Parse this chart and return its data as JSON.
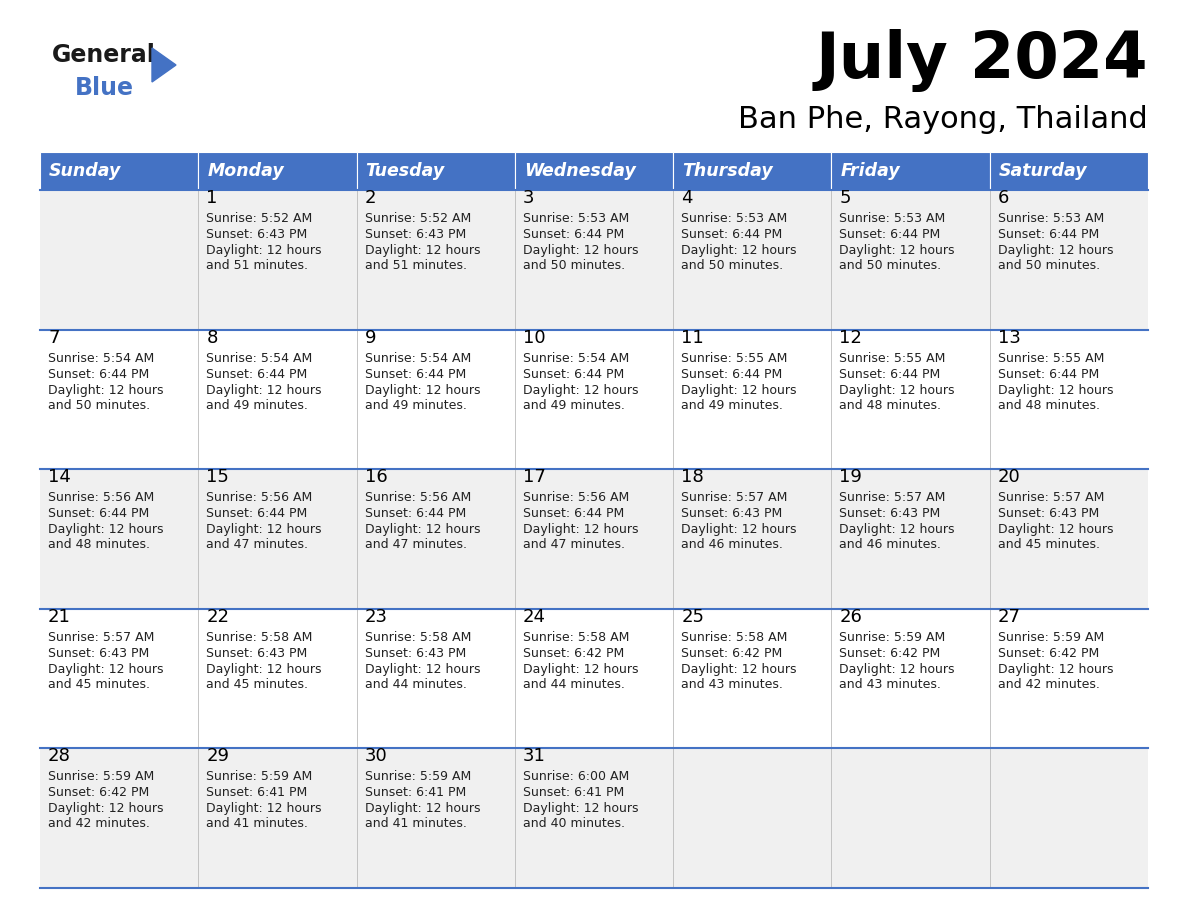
{
  "title": "July 2024",
  "subtitle": "Ban Phe, Rayong, Thailand",
  "days_of_week": [
    "Sunday",
    "Monday",
    "Tuesday",
    "Wednesday",
    "Thursday",
    "Friday",
    "Saturday"
  ],
  "header_bg": "#4472C4",
  "header_text": "#FFFFFF",
  "row_bg_odd": "#F0F0F0",
  "row_bg_even": "#FFFFFF",
  "cell_text": "#222222",
  "day_num_color": "#000000",
  "divider_color": "#4472C4",
  "title_color": "#000000",
  "subtitle_color": "#000000",
  "weeks": [
    {
      "days": [
        {
          "date": "",
          "sunrise": "",
          "sunset": "",
          "daylight": ""
        },
        {
          "date": "1",
          "sunrise": "Sunrise: 5:52 AM",
          "sunset": "Sunset: 6:43 PM",
          "daylight": "Daylight: 12 hours\nand 51 minutes."
        },
        {
          "date": "2",
          "sunrise": "Sunrise: 5:52 AM",
          "sunset": "Sunset: 6:43 PM",
          "daylight": "Daylight: 12 hours\nand 51 minutes."
        },
        {
          "date": "3",
          "sunrise": "Sunrise: 5:53 AM",
          "sunset": "Sunset: 6:44 PM",
          "daylight": "Daylight: 12 hours\nand 50 minutes."
        },
        {
          "date": "4",
          "sunrise": "Sunrise: 5:53 AM",
          "sunset": "Sunset: 6:44 PM",
          "daylight": "Daylight: 12 hours\nand 50 minutes."
        },
        {
          "date": "5",
          "sunrise": "Sunrise: 5:53 AM",
          "sunset": "Sunset: 6:44 PM",
          "daylight": "Daylight: 12 hours\nand 50 minutes."
        },
        {
          "date": "6",
          "sunrise": "Sunrise: 5:53 AM",
          "sunset": "Sunset: 6:44 PM",
          "daylight": "Daylight: 12 hours\nand 50 minutes."
        }
      ]
    },
    {
      "days": [
        {
          "date": "7",
          "sunrise": "Sunrise: 5:54 AM",
          "sunset": "Sunset: 6:44 PM",
          "daylight": "Daylight: 12 hours\nand 50 minutes."
        },
        {
          "date": "8",
          "sunrise": "Sunrise: 5:54 AM",
          "sunset": "Sunset: 6:44 PM",
          "daylight": "Daylight: 12 hours\nand 49 minutes."
        },
        {
          "date": "9",
          "sunrise": "Sunrise: 5:54 AM",
          "sunset": "Sunset: 6:44 PM",
          "daylight": "Daylight: 12 hours\nand 49 minutes."
        },
        {
          "date": "10",
          "sunrise": "Sunrise: 5:54 AM",
          "sunset": "Sunset: 6:44 PM",
          "daylight": "Daylight: 12 hours\nand 49 minutes."
        },
        {
          "date": "11",
          "sunrise": "Sunrise: 5:55 AM",
          "sunset": "Sunset: 6:44 PM",
          "daylight": "Daylight: 12 hours\nand 49 minutes."
        },
        {
          "date": "12",
          "sunrise": "Sunrise: 5:55 AM",
          "sunset": "Sunset: 6:44 PM",
          "daylight": "Daylight: 12 hours\nand 48 minutes."
        },
        {
          "date": "13",
          "sunrise": "Sunrise: 5:55 AM",
          "sunset": "Sunset: 6:44 PM",
          "daylight": "Daylight: 12 hours\nand 48 minutes."
        }
      ]
    },
    {
      "days": [
        {
          "date": "14",
          "sunrise": "Sunrise: 5:56 AM",
          "sunset": "Sunset: 6:44 PM",
          "daylight": "Daylight: 12 hours\nand 48 minutes."
        },
        {
          "date": "15",
          "sunrise": "Sunrise: 5:56 AM",
          "sunset": "Sunset: 6:44 PM",
          "daylight": "Daylight: 12 hours\nand 47 minutes."
        },
        {
          "date": "16",
          "sunrise": "Sunrise: 5:56 AM",
          "sunset": "Sunset: 6:44 PM",
          "daylight": "Daylight: 12 hours\nand 47 minutes."
        },
        {
          "date": "17",
          "sunrise": "Sunrise: 5:56 AM",
          "sunset": "Sunset: 6:44 PM",
          "daylight": "Daylight: 12 hours\nand 47 minutes."
        },
        {
          "date": "18",
          "sunrise": "Sunrise: 5:57 AM",
          "sunset": "Sunset: 6:43 PM",
          "daylight": "Daylight: 12 hours\nand 46 minutes."
        },
        {
          "date": "19",
          "sunrise": "Sunrise: 5:57 AM",
          "sunset": "Sunset: 6:43 PM",
          "daylight": "Daylight: 12 hours\nand 46 minutes."
        },
        {
          "date": "20",
          "sunrise": "Sunrise: 5:57 AM",
          "sunset": "Sunset: 6:43 PM",
          "daylight": "Daylight: 12 hours\nand 45 minutes."
        }
      ]
    },
    {
      "days": [
        {
          "date": "21",
          "sunrise": "Sunrise: 5:57 AM",
          "sunset": "Sunset: 6:43 PM",
          "daylight": "Daylight: 12 hours\nand 45 minutes."
        },
        {
          "date": "22",
          "sunrise": "Sunrise: 5:58 AM",
          "sunset": "Sunset: 6:43 PM",
          "daylight": "Daylight: 12 hours\nand 45 minutes."
        },
        {
          "date": "23",
          "sunrise": "Sunrise: 5:58 AM",
          "sunset": "Sunset: 6:43 PM",
          "daylight": "Daylight: 12 hours\nand 44 minutes."
        },
        {
          "date": "24",
          "sunrise": "Sunrise: 5:58 AM",
          "sunset": "Sunset: 6:42 PM",
          "daylight": "Daylight: 12 hours\nand 44 minutes."
        },
        {
          "date": "25",
          "sunrise": "Sunrise: 5:58 AM",
          "sunset": "Sunset: 6:42 PM",
          "daylight": "Daylight: 12 hours\nand 43 minutes."
        },
        {
          "date": "26",
          "sunrise": "Sunrise: 5:59 AM",
          "sunset": "Sunset: 6:42 PM",
          "daylight": "Daylight: 12 hours\nand 43 minutes."
        },
        {
          "date": "27",
          "sunrise": "Sunrise: 5:59 AM",
          "sunset": "Sunset: 6:42 PM",
          "daylight": "Daylight: 12 hours\nand 42 minutes."
        }
      ]
    },
    {
      "days": [
        {
          "date": "28",
          "sunrise": "Sunrise: 5:59 AM",
          "sunset": "Sunset: 6:42 PM",
          "daylight": "Daylight: 12 hours\nand 42 minutes."
        },
        {
          "date": "29",
          "sunrise": "Sunrise: 5:59 AM",
          "sunset": "Sunset: 6:41 PM",
          "daylight": "Daylight: 12 hours\nand 41 minutes."
        },
        {
          "date": "30",
          "sunrise": "Sunrise: 5:59 AM",
          "sunset": "Sunset: 6:41 PM",
          "daylight": "Daylight: 12 hours\nand 41 minutes."
        },
        {
          "date": "31",
          "sunrise": "Sunrise: 6:00 AM",
          "sunset": "Sunset: 6:41 PM",
          "daylight": "Daylight: 12 hours\nand 40 minutes."
        },
        {
          "date": "",
          "sunrise": "",
          "sunset": "",
          "daylight": ""
        },
        {
          "date": "",
          "sunrise": "",
          "sunset": "",
          "daylight": ""
        },
        {
          "date": "",
          "sunrise": "",
          "sunset": "",
          "daylight": ""
        }
      ]
    }
  ]
}
